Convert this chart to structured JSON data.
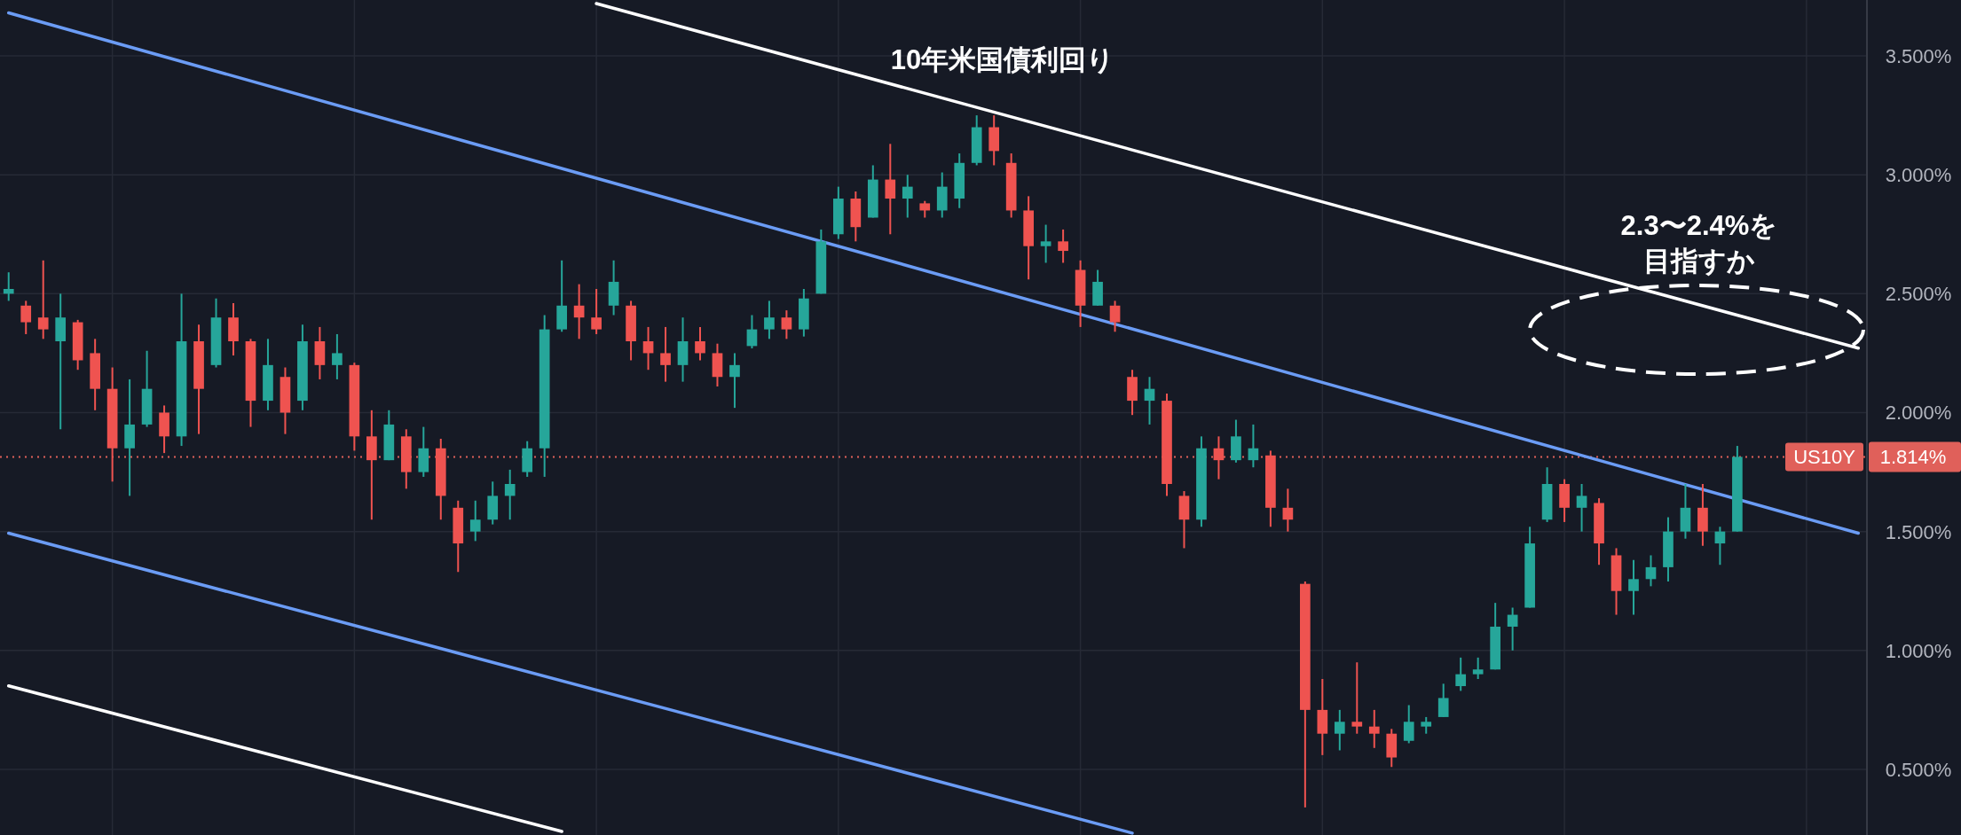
{
  "chart_data": {
    "type": "candlestick",
    "title": "10年米国債利回り",
    "categories": [
      null,
      null,
      null,
      null,
      null,
      null,
      null,
      null,
      null,
      null,
      null,
      null,
      null,
      null,
      null,
      null,
      null,
      null,
      null,
      null,
      null,
      null,
      null,
      null,
      null,
      null,
      null,
      null,
      null,
      null,
      null,
      null,
      null,
      null,
      null,
      null,
      null,
      null,
      null,
      null,
      null,
      null,
      null,
      null,
      null,
      null,
      null,
      null,
      null,
      null,
      null,
      null,
      null,
      null,
      null,
      null,
      null,
      null,
      null,
      null,
      null,
      null,
      null,
      null,
      null,
      null,
      null,
      null,
      null,
      null,
      null,
      null,
      null,
      null,
      null,
      null,
      null,
      null,
      null,
      null,
      null,
      null,
      null,
      null,
      null,
      null,
      null,
      null,
      null,
      null,
      null,
      null,
      null,
      null,
      null,
      null,
      null,
      null,
      null,
      null,
      null,
      null,
      null,
      null,
      null,
      null,
      null,
      null
    ],
    "ohlc": [
      [
        2.5,
        2.59,
        2.47,
        2.52
      ],
      [
        2.45,
        2.47,
        2.33,
        2.38
      ],
      [
        2.4,
        2.64,
        2.31,
        2.35
      ],
      [
        2.3,
        2.5,
        1.93,
        2.4
      ],
      [
        2.38,
        2.39,
        2.18,
        2.22
      ],
      [
        2.25,
        2.31,
        2.01,
        2.1
      ],
      [
        2.1,
        2.19,
        1.71,
        1.85
      ],
      [
        1.85,
        2.14,
        1.65,
        1.95
      ],
      [
        1.95,
        2.26,
        1.94,
        2.1
      ],
      [
        2.0,
        2.03,
        1.83,
        1.9
      ],
      [
        1.9,
        2.5,
        1.86,
        2.3
      ],
      [
        2.3,
        2.37,
        1.91,
        2.1
      ],
      [
        2.2,
        2.48,
        2.19,
        2.4
      ],
      [
        2.4,
        2.46,
        2.24,
        2.3
      ],
      [
        2.3,
        2.31,
        1.94,
        2.05
      ],
      [
        2.05,
        2.31,
        2.01,
        2.2
      ],
      [
        2.15,
        2.19,
        1.91,
        2.0
      ],
      [
        2.05,
        2.37,
        2.01,
        2.3
      ],
      [
        2.3,
        2.36,
        2.14,
        2.2
      ],
      [
        2.2,
        2.33,
        2.14,
        2.25
      ],
      [
        2.2,
        2.21,
        1.84,
        1.9
      ],
      [
        1.9,
        2.01,
        1.55,
        1.8
      ],
      [
        1.8,
        2.01,
        1.8,
        1.95
      ],
      [
        1.9,
        1.93,
        1.68,
        1.75
      ],
      [
        1.75,
        1.94,
        1.73,
        1.85
      ],
      [
        1.85,
        1.89,
        1.55,
        1.65
      ],
      [
        1.6,
        1.63,
        1.33,
        1.45
      ],
      [
        1.5,
        1.63,
        1.46,
        1.55
      ],
      [
        1.55,
        1.71,
        1.53,
        1.65
      ],
      [
        1.65,
        1.76,
        1.55,
        1.7
      ],
      [
        1.75,
        1.88,
        1.73,
        1.85
      ],
      [
        1.85,
        2.41,
        1.73,
        2.35
      ],
      [
        2.35,
        2.64,
        2.34,
        2.45
      ],
      [
        2.45,
        2.54,
        2.31,
        2.4
      ],
      [
        2.4,
        2.52,
        2.33,
        2.35
      ],
      [
        2.45,
        2.64,
        2.41,
        2.55
      ],
      [
        2.45,
        2.47,
        2.22,
        2.3
      ],
      [
        2.3,
        2.36,
        2.18,
        2.25
      ],
      [
        2.25,
        2.36,
        2.13,
        2.2
      ],
      [
        2.2,
        2.4,
        2.13,
        2.3
      ],
      [
        2.3,
        2.36,
        2.22,
        2.25
      ],
      [
        2.25,
        2.29,
        2.11,
        2.15
      ],
      [
        2.15,
        2.25,
        2.02,
        2.2
      ],
      [
        2.28,
        2.41,
        2.27,
        2.35
      ],
      [
        2.35,
        2.47,
        2.31,
        2.4
      ],
      [
        2.4,
        2.43,
        2.31,
        2.35
      ],
      [
        2.35,
        2.52,
        2.32,
        2.48
      ],
      [
        2.5,
        2.77,
        2.5,
        2.72
      ],
      [
        2.75,
        2.95,
        2.73,
        2.9
      ],
      [
        2.9,
        2.93,
        2.72,
        2.78
      ],
      [
        2.82,
        3.04,
        2.82,
        2.98
      ],
      [
        2.98,
        3.13,
        2.75,
        2.9
      ],
      [
        2.9,
        3.0,
        2.82,
        2.95
      ],
      [
        2.88,
        2.89,
        2.82,
        2.85
      ],
      [
        2.85,
        3.01,
        2.82,
        2.95
      ],
      [
        2.9,
        3.09,
        2.86,
        3.05
      ],
      [
        3.05,
        3.25,
        3.04,
        3.2
      ],
      [
        3.2,
        3.25,
        3.04,
        3.1
      ],
      [
        3.05,
        3.09,
        2.82,
        2.85
      ],
      [
        2.85,
        2.91,
        2.56,
        2.7
      ],
      [
        2.7,
        2.79,
        2.63,
        2.72
      ],
      [
        2.72,
        2.77,
        2.63,
        2.68
      ],
      [
        2.6,
        2.64,
        2.36,
        2.45
      ],
      [
        2.45,
        2.6,
        2.45,
        2.55
      ],
      [
        2.45,
        2.47,
        2.34,
        2.38
      ],
      [
        2.15,
        2.18,
        1.99,
        2.05
      ],
      [
        2.05,
        2.15,
        1.95,
        2.1
      ],
      [
        2.05,
        2.08,
        1.65,
        1.7
      ],
      [
        1.65,
        1.67,
        1.43,
        1.55
      ],
      [
        1.55,
        1.9,
        1.52,
        1.85
      ],
      [
        1.85,
        1.9,
        1.72,
        1.8
      ],
      [
        1.8,
        1.97,
        1.79,
        1.9
      ],
      [
        1.8,
        1.95,
        1.77,
        1.85
      ],
      [
        1.82,
        1.84,
        1.52,
        1.6
      ],
      [
        1.6,
        1.68,
        1.5,
        1.55
      ],
      [
        1.28,
        1.29,
        0.34,
        0.75
      ],
      [
        0.75,
        0.88,
        0.56,
        0.65
      ],
      [
        0.65,
        0.75,
        0.58,
        0.7
      ],
      [
        0.7,
        0.95,
        0.65,
        0.68
      ],
      [
        0.68,
        0.75,
        0.59,
        0.65
      ],
      [
        0.65,
        0.67,
        0.51,
        0.55
      ],
      [
        0.62,
        0.77,
        0.61,
        0.7
      ],
      [
        0.68,
        0.72,
        0.65,
        0.7
      ],
      [
        0.72,
        0.86,
        0.72,
        0.8
      ],
      [
        0.85,
        0.97,
        0.83,
        0.9
      ],
      [
        0.9,
        0.97,
        0.88,
        0.92
      ],
      [
        0.92,
        1.2,
        0.92,
        1.1
      ],
      [
        1.1,
        1.18,
        1.0,
        1.15
      ],
      [
        1.18,
        1.52,
        1.18,
        1.45
      ],
      [
        1.55,
        1.77,
        1.54,
        1.7
      ],
      [
        1.7,
        1.72,
        1.54,
        1.6
      ],
      [
        1.6,
        1.7,
        1.5,
        1.65
      ],
      [
        1.62,
        1.64,
        1.36,
        1.45
      ],
      [
        1.4,
        1.43,
        1.15,
        1.25
      ],
      [
        1.25,
        1.38,
        1.15,
        1.3
      ],
      [
        1.3,
        1.4,
        1.27,
        1.35
      ],
      [
        1.35,
        1.56,
        1.29,
        1.5
      ],
      [
        1.5,
        1.7,
        1.47,
        1.6
      ],
      [
        1.6,
        1.7,
        1.44,
        1.5
      ],
      [
        1.45,
        1.52,
        1.36,
        1.5
      ],
      [
        1.5,
        1.86,
        1.5,
        1.814
      ],
      null,
      null,
      null,
      null,
      null,
      null,
      null
    ],
    "series": [
      {
        "type": "line",
        "color": "#ffffff",
        "values": [
          null,
          null,
          null,
          null,
          null,
          null,
          null,
          null,
          null,
          null,
          null,
          null,
          null,
          null,
          null,
          null,
          null,
          null,
          null,
          null,
          null,
          null,
          null,
          null,
          null,
          null,
          null,
          null,
          null,
          null,
          null,
          null,
          null,
          null,
          3.72,
          null,
          null,
          null,
          null,
          null,
          null,
          null,
          null,
          null,
          null,
          null,
          null,
          null,
          null,
          null,
          null,
          null,
          null,
          null,
          null,
          null,
          null,
          null,
          null,
          null,
          null,
          null,
          null,
          null,
          null,
          null,
          null,
          null,
          null,
          null,
          null,
          null,
          null,
          null,
          null,
          null,
          null,
          null,
          null,
          null,
          null,
          null,
          null,
          null,
          null,
          null,
          null,
          null,
          null,
          null,
          null,
          null,
          null,
          null,
          null,
          null,
          null,
          null,
          null,
          null,
          null,
          null,
          null,
          null,
          null,
          null,
          null,
          2.271
        ]
      },
      {
        "type": "line",
        "color": "#6b9cf5",
        "values": [
          3.681,
          null,
          null,
          null,
          null,
          null,
          null,
          null,
          null,
          null,
          null,
          null,
          null,
          null,
          null,
          null,
          null,
          null,
          null,
          null,
          null,
          null,
          null,
          null,
          null,
          null,
          null,
          null,
          null,
          null,
          null,
          null,
          null,
          null,
          null,
          null,
          null,
          null,
          null,
          null,
          null,
          null,
          null,
          null,
          null,
          null,
          null,
          null,
          null,
          null,
          null,
          null,
          null,
          null,
          null,
          null,
          null,
          null,
          null,
          null,
          null,
          null,
          null,
          null,
          null,
          null,
          null,
          null,
          null,
          null,
          null,
          null,
          null,
          null,
          null,
          null,
          null,
          null,
          null,
          null,
          null,
          null,
          null,
          null,
          null,
          null,
          null,
          null,
          null,
          null,
          null,
          null,
          null,
          null,
          null,
          null,
          null,
          null,
          null,
          null,
          null,
          null,
          null,
          null,
          null,
          null,
          null,
          1.493
        ]
      },
      {
        "type": "line",
        "color": "#6b9cf5",
        "values": [
          1.493,
          null,
          null,
          null,
          null,
          null,
          null,
          null,
          null,
          null,
          null,
          null,
          null,
          null,
          null,
          null,
          null,
          null,
          null,
          null,
          null,
          null,
          null,
          null,
          null,
          null,
          null,
          null,
          null,
          null,
          null,
          null,
          null,
          null,
          null,
          null,
          null,
          null,
          null,
          null,
          null,
          null,
          null,
          null,
          null,
          null,
          null,
          null,
          null,
          null,
          null,
          null,
          null,
          null,
          null,
          null,
          null,
          null,
          null,
          null,
          null,
          null,
          null,
          null,
          null,
          0.232,
          null,
          null,
          null,
          null,
          null,
          null,
          null,
          null,
          null,
          null,
          null,
          null,
          null,
          null,
          null,
          null,
          null,
          null,
          null,
          null,
          null,
          null,
          null,
          null,
          null,
          null,
          null,
          null,
          null,
          null,
          null,
          null,
          null,
          null,
          null,
          null,
          null,
          null,
          null,
          null,
          null,
          null
        ]
      },
      {
        "type": "line",
        "color": "#ffffff",
        "values": [
          0.851,
          null,
          null,
          null,
          null,
          null,
          null,
          null,
          null,
          null,
          null,
          null,
          null,
          null,
          null,
          null,
          null,
          null,
          null,
          null,
          null,
          null,
          null,
          null,
          null,
          null,
          null,
          null,
          null,
          null,
          null,
          null,
          0.239,
          null,
          null,
          null,
          null,
          null,
          null,
          null,
          null,
          null,
          null,
          null,
          null,
          null,
          null,
          null,
          null,
          null,
          null,
          null,
          null,
          null,
          null,
          null,
          null,
          null,
          null,
          null,
          null,
          null,
          null,
          null,
          null,
          null,
          null,
          null,
          null,
          null,
          null,
          null,
          null,
          null,
          null,
          null,
          null,
          null,
          null,
          null,
          null,
          null,
          null,
          null,
          null,
          null,
          null,
          null,
          null,
          null,
          null,
          null,
          null,
          null,
          null,
          null,
          null,
          null,
          null,
          null,
          null,
          null,
          null,
          null,
          null,
          null,
          null,
          null
        ]
      }
    ],
    "ylim": [
      0.224,
      3.735
    ],
    "yticks": [
      {
        "value": 0.5,
        "label": "0.500%"
      },
      {
        "value": 1.0,
        "label": "1.000%"
      },
      {
        "value": 1.5,
        "label": "1.500%"
      },
      {
        "value": 2.0,
        "label": "2.000%"
      },
      {
        "value": 2.5,
        "label": "2.500%"
      },
      {
        "value": 3.0,
        "label": "3.000%"
      },
      {
        "value": 3.5,
        "label": "3.500%"
      }
    ],
    "tick_labels": "y",
    "grid": true,
    "ref_lines": [
      {
        "axis": "y",
        "value": 1.814,
        "label": "US10Y",
        "color": "#e0605a",
        "line_style": "dotted"
      }
    ],
    "annotations": [
      "2.3〜2.4%を目指すか",
      "1.814%"
    ]
  }
}
